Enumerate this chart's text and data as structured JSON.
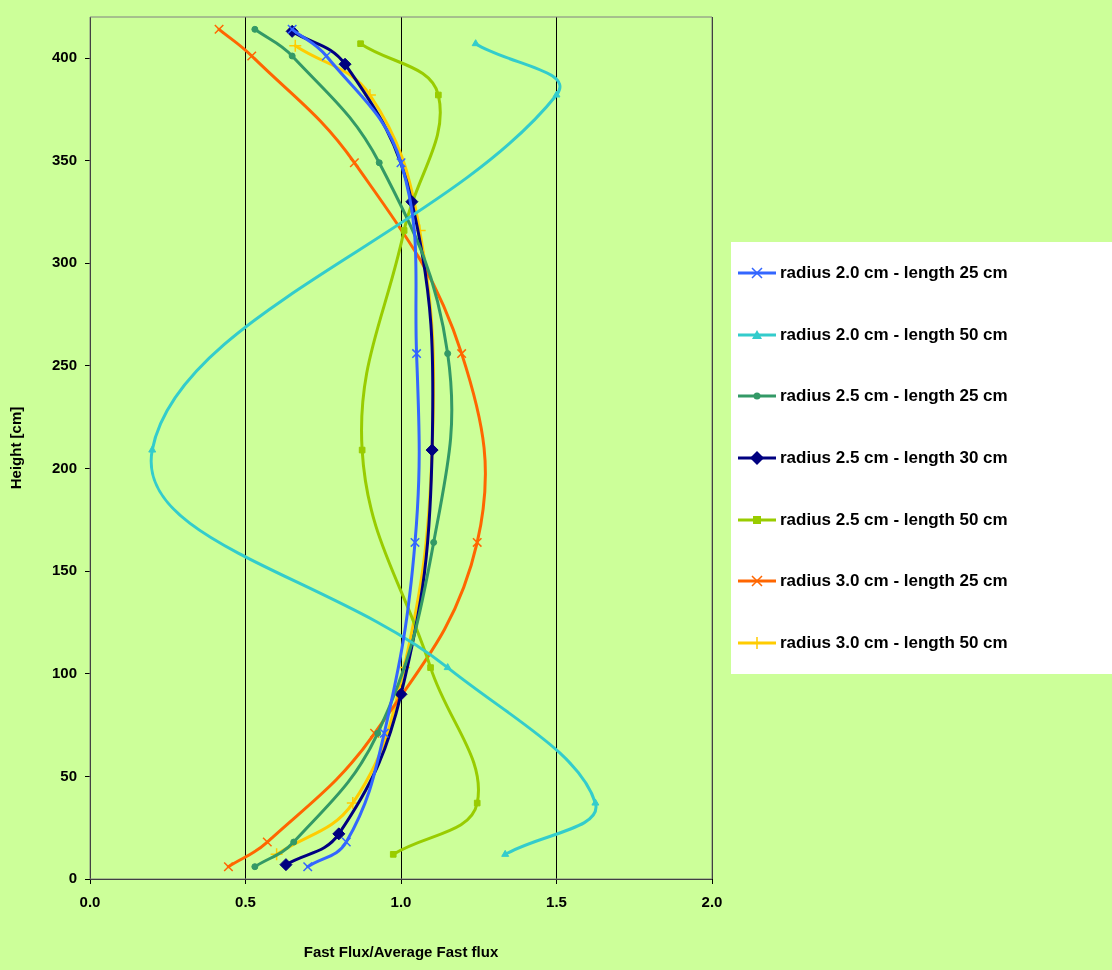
{
  "chart_data": {
    "type": "line",
    "xlabel": "Fast Flux/Average Fast flux",
    "ylabel": "Height [cm]",
    "xlim": [
      0,
      2
    ],
    "xticks": [
      {
        "value": 0,
        "label": "0.0"
      },
      {
        "value": 0.5,
        "label": "0.5"
      },
      {
        "value": 1,
        "label": "1.0"
      },
      {
        "value": 1.5,
        "label": "1.5"
      },
      {
        "value": 2,
        "label": "2.0"
      }
    ],
    "ylim": [
      0,
      420
    ],
    "yticks": [
      0,
      50,
      100,
      150,
      200,
      250,
      300,
      350,
      400
    ],
    "grid": "x",
    "legend": "right",
    "line_style": "solid",
    "series": [
      {
        "name": "radius 2.0 cm - length 25 cm",
        "color": "#3366ff",
        "marker": "cross",
        "x": [
          0.65,
          0.76,
          1.0,
          1.05,
          1.045,
          0.946,
          0.824,
          0.7
        ],
        "values": [
          414,
          401,
          349,
          256,
          164,
          71,
          18,
          6
        ]
      },
      {
        "name": "radius 2.0 cm - length 50 cm",
        "color": "#33cccc",
        "marker": "triangle",
        "x": [
          1.24,
          1.5,
          0.2,
          1.15,
          1.625,
          1.335
        ],
        "values": [
          407,
          382,
          209,
          103,
          37,
          12
        ]
      },
      {
        "name": "radius 2.5 cm - length 25 cm",
        "color": "#339966",
        "marker": "circle",
        "x": [
          0.53,
          0.65,
          0.93,
          1.15,
          1.105,
          0.925,
          0.655,
          0.53
        ],
        "values": [
          414,
          401,
          349,
          256,
          164,
          71,
          18,
          6
        ]
      },
      {
        "name": "radius 2.5 cm - length 30 cm",
        "color": "#000080",
        "marker": "diamond",
        "x": [
          0.65,
          0.82,
          1.035,
          1.1,
          1.0,
          0.8,
          0.63
        ],
        "values": [
          413,
          397,
          330,
          209,
          90,
          22,
          7
        ]
      },
      {
        "name": "radius 2.5 cm - length 50 cm",
        "color": "#99cc00",
        "marker": "square",
        "x": [
          0.87,
          1.12,
          1.01,
          0.875,
          1.095,
          1.245,
          0.975
        ],
        "values": [
          407,
          382,
          316,
          209,
          103,
          37,
          12
        ]
      },
      {
        "name": "radius 3.0 cm - length 25 cm",
        "color": "#ff6600",
        "marker": "cross",
        "x": [
          0.415,
          0.52,
          0.85,
          1.195,
          1.245,
          0.915,
          0.57,
          0.445
        ],
        "values": [
          414,
          401,
          349,
          256,
          164,
          71,
          18,
          6
        ]
      },
      {
        "name": "radius 3.0 cm - length 50 cm",
        "color": "#ffcc00",
        "marker": "plus",
        "x": [
          0.66,
          0.9,
          1.06,
          1.1,
          1.01,
          0.845,
          0.6
        ],
        "values": [
          406,
          382,
          316,
          209,
          103,
          37,
          12
        ]
      }
    ]
  }
}
